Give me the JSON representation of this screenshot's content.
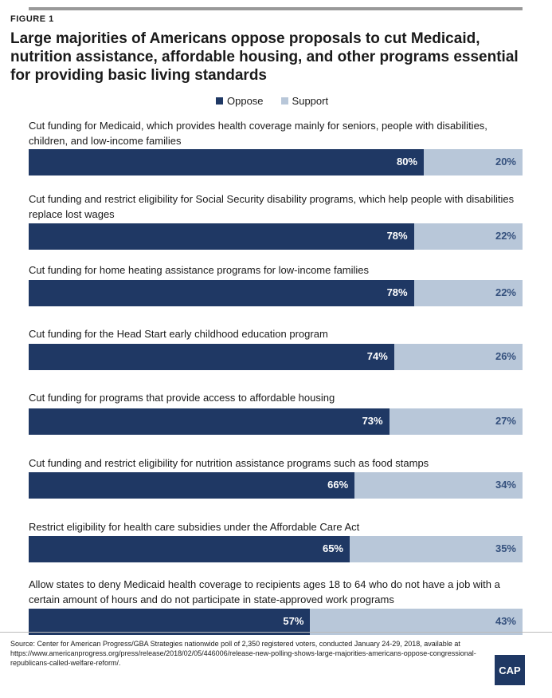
{
  "figure_label": "FIGURE 1",
  "title": "Large majorities of Americans oppose proposals to cut Medicaid, nutrition assistance, affordable housing, and other programs essential for providing basic living standards",
  "colors": {
    "oppose": "#1f3864",
    "support": "#b8c7d9"
  },
  "source": "Source: Center for American Progress/GBA Strategies nationwide poll of 2,350 registered voters, conducted January 24-29, 2018, available at https://www.americanprogress.org/press/release/2018/02/05/446006/release-new-polling-shows-large-majorities-americans-oppose-congressional-republicans-called-welfare-reform/.",
  "logo_text": "CAP",
  "chart_data": {
    "type": "bar",
    "orientation": "horizontal",
    "stacked": true,
    "legend": [
      "Oppose",
      "Support"
    ],
    "legend_position": "top-center",
    "xlim": [
      0,
      100
    ],
    "categories": [
      "Cut funding for Medicaid, which provides health coverage mainly for seniors, people with disabilities, children, and low-income families",
      "Cut funding and restrict eligibility for Social Security disability programs, which help people with disabilities replace lost wages",
      "Cut funding for home heating assistance programs for low-income families",
      "Cut funding for the Head Start early childhood education program",
      "Cut funding for programs that provide access to affordable housing",
      "Cut funding and restrict eligibility for nutrition assistance programs such as food stamps",
      "Restrict eligibility for health care subsidies under the Affordable Care Act",
      "Allow states to deny Medicaid health coverage to recipients ages 18 to 64 who do not have a job with a certain amount of hours and do not participate in state-approved work programs"
    ],
    "series": [
      {
        "name": "Oppose",
        "values": [
          80,
          78,
          78,
          74,
          73,
          66,
          65,
          57
        ],
        "labels": [
          "80%",
          "78%",
          "78%",
          "74%",
          "73%",
          "66%",
          "65%",
          "57%"
        ]
      },
      {
        "name": "Support",
        "values": [
          20,
          22,
          22,
          26,
          27,
          34,
          35,
          43
        ],
        "labels": [
          "20%",
          "22%",
          "22%",
          "26%",
          "27%",
          "34%",
          "35%",
          "43%"
        ]
      }
    ]
  }
}
